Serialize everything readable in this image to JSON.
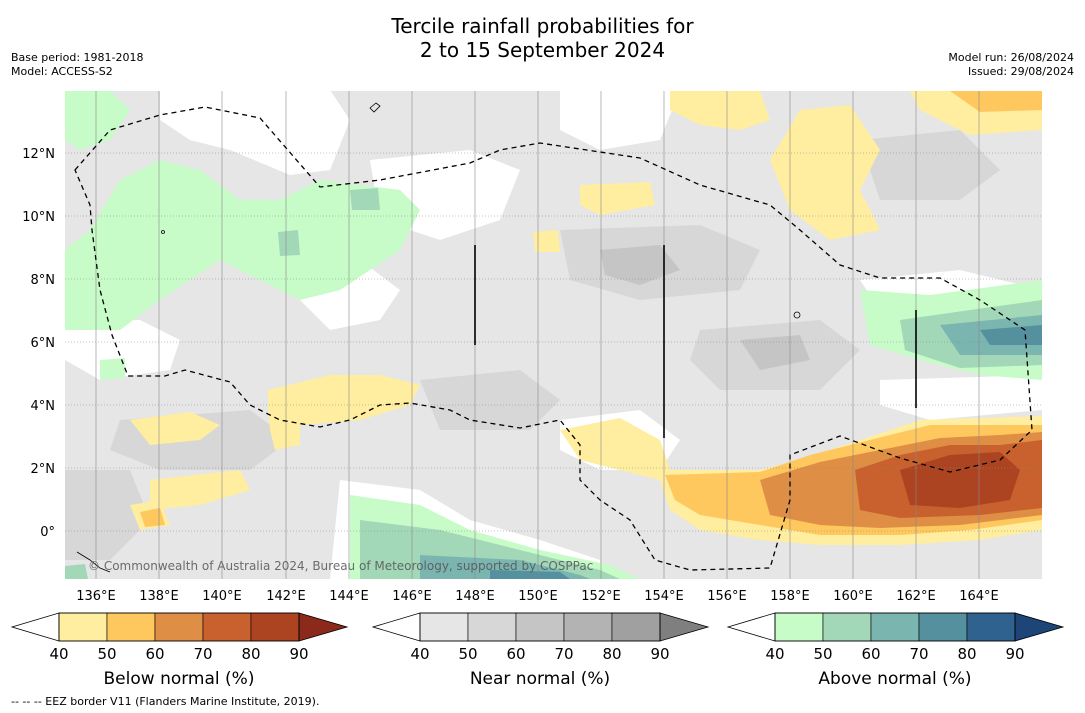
{
  "title": {
    "line1": "Tercile rainfall probabilities for",
    "line2": "2 to 15 September 2024"
  },
  "meta_left": {
    "base_period": "Base period: 1981-2018",
    "model": "Model: ACCESS-S2"
  },
  "meta_right": {
    "model_run": "Model run: 26/08/2024",
    "issued": "Issued: 29/08/2024"
  },
  "map": {
    "lat_ticks": [
      "12°N",
      "10°N",
      "8°N",
      "6°N",
      "4°N",
      "2°N",
      "0°"
    ],
    "lon_ticks": [
      "136°E",
      "138°E",
      "140°E",
      "142°E",
      "144°E",
      "146°E",
      "148°E",
      "150°E",
      "152°E",
      "154°E",
      "156°E",
      "158°E",
      "160°E",
      "162°E",
      "164°E"
    ],
    "attribution": "© Commonwealth of Australia 2024, Bureau of Meteorology, supported by COSPPac"
  },
  "colorbars": [
    {
      "title": "Below normal (%)",
      "ticks": [
        "40",
        "50",
        "60",
        "70",
        "80",
        "90"
      ],
      "colors": [
        "#ffeda0",
        "#fec85e",
        "#de8f45",
        "#c8612d",
        "#ad4421"
      ],
      "extend_color": "#8b2a1a"
    },
    {
      "title": "Near normal (%)",
      "ticks": [
        "40",
        "50",
        "60",
        "70",
        "80",
        "90"
      ],
      "colors": [
        "#e6e6e6",
        "#d7d7d7",
        "#c5c5c5",
        "#b3b3b3",
        "#a0a0a0"
      ],
      "extend_color": "#7f7f7f"
    },
    {
      "title": "Above normal (%)",
      "ticks": [
        "40",
        "50",
        "60",
        "70",
        "80",
        "90"
      ],
      "colors": [
        "#c7fcc8",
        "#a2d8b8",
        "#7bb5b0",
        "#55909f",
        "#2f628f"
      ],
      "extend_color": "#1d4577"
    }
  ],
  "footer": "-- -- -- EEZ border V11 (Flanders Marine Institute, 2019)."
}
